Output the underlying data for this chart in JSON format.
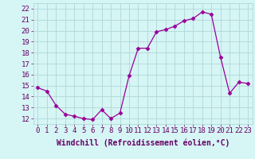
{
  "x": [
    0,
    1,
    2,
    3,
    4,
    5,
    6,
    7,
    8,
    9,
    10,
    11,
    12,
    13,
    14,
    15,
    16,
    17,
    18,
    19,
    20,
    21,
    22,
    23
  ],
  "y": [
    14.8,
    14.5,
    13.2,
    12.4,
    12.2,
    12.0,
    11.9,
    12.8,
    12.0,
    12.5,
    15.9,
    18.4,
    18.4,
    19.9,
    20.1,
    20.4,
    20.9,
    21.1,
    21.7,
    21.5,
    17.6,
    14.3,
    15.3,
    15.2
  ],
  "line_color": "#990099",
  "marker": "D",
  "marker_size": 2.5,
  "bg_color": "#d6f5f5",
  "grid_color": "#b0d8d8",
  "xlabel": "Windchill (Refroidissement éolien,°C)",
  "xlabel_fontsize": 7,
  "xtick_labels": [
    "0",
    "1",
    "2",
    "3",
    "4",
    "5",
    "6",
    "7",
    "8",
    "9",
    "10",
    "11",
    "12",
    "13",
    "14",
    "15",
    "16",
    "17",
    "18",
    "19",
    "20",
    "21",
    "22",
    "23"
  ],
  "ytick_min": 12,
  "ytick_max": 22,
  "ytick_step": 1,
  "ylim": [
    11.5,
    22.5
  ],
  "xlim": [
    -0.5,
    23.5
  ],
  "font_color": "#660066",
  "tick_fontsize": 6.5
}
